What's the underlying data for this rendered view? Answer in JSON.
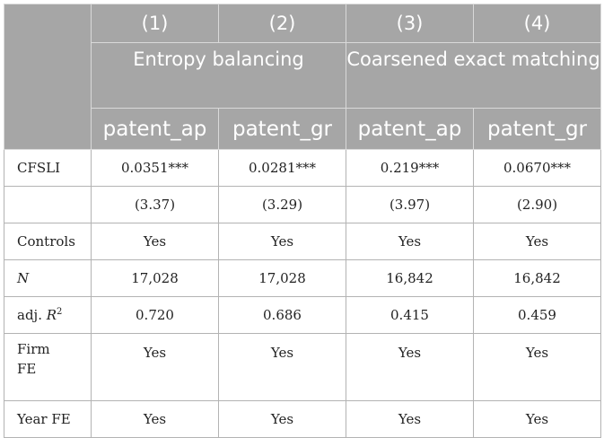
{
  "header": {
    "col_numbers": [
      "(1)",
      "(2)",
      "(3)",
      "(4)"
    ],
    "groups": [
      "Entropy balancing",
      "Coarsened exact matching"
    ],
    "variables": [
      "patent_ap",
      "patent_gr",
      "patent_ap",
      "patent_gr"
    ]
  },
  "rows": {
    "cfsli": {
      "label": "CFSLI",
      "values": [
        "0.0351***",
        "0.0281***",
        "0.219***",
        "0.0670***"
      ]
    },
    "tstat": {
      "values": [
        "(3.37)",
        "(3.29)",
        "(3.97)",
        "(2.90)"
      ]
    },
    "controls": {
      "label": "Controls",
      "values": [
        "Yes",
        "Yes",
        "Yes",
        "Yes"
      ]
    },
    "n": {
      "label": "N",
      "values": [
        "17,028",
        "17,028",
        "16,842",
        "16,842"
      ]
    },
    "adjr2": {
      "label": "adj. ",
      "label_r": "R",
      "label_sup": "2",
      "values": [
        "0.720",
        "0.686",
        "0.415",
        "0.459"
      ]
    },
    "firmfe": {
      "label_line1": "Firm",
      "label_line2": "FE",
      "values": [
        "Yes",
        "Yes",
        "Yes",
        "Yes"
      ]
    },
    "yearfe": {
      "label": "Year FE",
      "values": [
        "Yes",
        "Yes",
        "Yes",
        "Yes"
      ]
    }
  }
}
